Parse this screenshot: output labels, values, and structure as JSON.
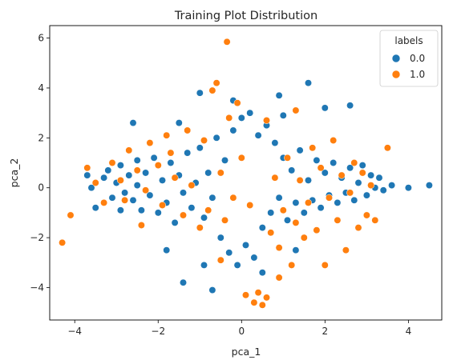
{
  "chart_data": {
    "type": "scatter",
    "title": "Training Plot Distribution",
    "xlabel": "pca_1",
    "ylabel": "pca_2",
    "xlim": [
      -4.6,
      4.8
    ],
    "ylim": [
      -5.3,
      6.5
    ],
    "x_ticks": [
      -4,
      -2,
      0,
      2,
      4
    ],
    "y_ticks": [
      -4,
      -2,
      0,
      2,
      4,
      6
    ],
    "x_tick_labels": [
      "−4",
      "−2",
      "0",
      "2",
      "4"
    ],
    "y_tick_labels": [
      "−4",
      "−2",
      "0",
      "2",
      "4",
      "6"
    ],
    "grid": false,
    "legend": {
      "title": "labels",
      "placement": "top-right",
      "entries": [
        {
          "label": "0.0",
          "color": "#1f77b4"
        },
        {
          "label": "1.0",
          "color": "#ff7f0e"
        }
      ]
    },
    "series": [
      {
        "name": "0.0",
        "color": "#1f77b4",
        "points": [
          [
            -3.7,
            0.5
          ],
          [
            -3.6,
            0.0
          ],
          [
            -3.5,
            -0.8
          ],
          [
            -3.3,
            0.4
          ],
          [
            -3.2,
            0.7
          ],
          [
            -3.1,
            -0.4
          ],
          [
            -3.0,
            0.2
          ],
          [
            -2.9,
            -0.9
          ],
          [
            -2.9,
            0.9
          ],
          [
            -2.8,
            -0.2
          ],
          [
            -2.7,
            0.5
          ],
          [
            -2.6,
            -0.5
          ],
          [
            -2.5,
            1.1
          ],
          [
            -2.5,
            0.1
          ],
          [
            -2.4,
            -0.9
          ],
          [
            -2.3,
            0.6
          ],
          [
            -2.2,
            -0.3
          ],
          [
            -2.1,
            1.2
          ],
          [
            -2.0,
            -1.0
          ],
          [
            -1.9,
            0.3
          ],
          [
            -1.8,
            -0.6
          ],
          [
            -1.7,
            1.0
          ],
          [
            -1.6,
            -1.4
          ],
          [
            -1.5,
            0.5
          ],
          [
            -1.4,
            -0.2
          ],
          [
            -1.3,
            1.4
          ],
          [
            -1.2,
            -0.8
          ],
          [
            -1.1,
            0.2
          ],
          [
            -1.0,
            1.6
          ],
          [
            -0.9,
            -1.2
          ],
          [
            -0.8,
            0.6
          ],
          [
            -0.7,
            -0.4
          ],
          [
            -0.6,
            2.0
          ],
          [
            -0.5,
            -2.0
          ],
          [
            -0.4,
            1.1
          ],
          [
            -0.3,
            -2.6
          ],
          [
            -0.2,
            2.3
          ],
          [
            -0.1,
            -3.1
          ],
          [
            0.0,
            2.8
          ],
          [
            0.1,
            -2.3
          ],
          [
            0.2,
            3.0
          ],
          [
            0.3,
            -2.8
          ],
          [
            0.4,
            2.1
          ],
          [
            0.5,
            -1.6
          ],
          [
            0.6,
            2.5
          ],
          [
            0.7,
            -1.0
          ],
          [
            0.8,
            1.8
          ],
          [
            0.9,
            -0.4
          ],
          [
            1.0,
            1.2
          ],
          [
            1.1,
            -1.3
          ],
          [
            1.2,
            0.7
          ],
          [
            1.3,
            -0.6
          ],
          [
            1.4,
            1.5
          ],
          [
            1.5,
            -1.0
          ],
          [
            1.6,
            0.3
          ],
          [
            1.7,
            -0.5
          ],
          [
            1.8,
            1.1
          ],
          [
            1.9,
            -0.8
          ],
          [
            2.0,
            0.6
          ],
          [
            2.1,
            -0.3
          ],
          [
            2.2,
            1.0
          ],
          [
            2.3,
            -0.6
          ],
          [
            2.4,
            0.4
          ],
          [
            2.5,
            -0.2
          ],
          [
            2.6,
            0.8
          ],
          [
            2.7,
            -0.5
          ],
          [
            2.8,
            0.2
          ],
          [
            2.9,
            0.9
          ],
          [
            3.0,
            -0.3
          ],
          [
            3.1,
            0.5
          ],
          [
            3.2,
            0.0
          ],
          [
            3.3,
            0.4
          ],
          [
            3.4,
            -0.1
          ],
          [
            3.6,
            0.1
          ],
          [
            4.0,
            0.0
          ],
          [
            4.5,
            0.1
          ],
          [
            1.6,
            4.2
          ],
          [
            -1.4,
            -3.8
          ],
          [
            -1.0,
            3.8
          ],
          [
            0.9,
            3.7
          ],
          [
            -0.7,
            -4.1
          ],
          [
            2.0,
            3.2
          ],
          [
            -1.5,
            2.6
          ],
          [
            1.3,
            -2.5
          ],
          [
            -2.6,
            2.6
          ],
          [
            -0.2,
            3.5
          ],
          [
            0.5,
            -3.4
          ],
          [
            2.6,
            3.3
          ],
          [
            -1.8,
            -2.5
          ],
          [
            1.0,
            2.9
          ],
          [
            -0.9,
            -3.1
          ]
        ]
      },
      {
        "name": "1.0",
        "color": "#ff7f0e",
        "points": [
          [
            -4.3,
            -2.2
          ],
          [
            -4.1,
            -1.1
          ],
          [
            -3.7,
            0.8
          ],
          [
            -3.5,
            0.2
          ],
          [
            -3.3,
            -0.6
          ],
          [
            -3.1,
            1.0
          ],
          [
            -2.9,
            0.3
          ],
          [
            -2.8,
            -0.5
          ],
          [
            -2.7,
            1.5
          ],
          [
            -2.5,
            0.7
          ],
          [
            -2.3,
            -0.1
          ],
          [
            -2.2,
            1.8
          ],
          [
            -2.0,
            0.9
          ],
          [
            -1.9,
            -0.7
          ],
          [
            -1.7,
            1.4
          ],
          [
            -1.6,
            0.4
          ],
          [
            -1.4,
            -1.1
          ],
          [
            -1.3,
            2.3
          ],
          [
            -1.2,
            0.1
          ],
          [
            -1.0,
            -1.6
          ],
          [
            -0.9,
            1.9
          ],
          [
            -0.8,
            -0.9
          ],
          [
            -0.7,
            3.9
          ],
          [
            -0.6,
            4.2
          ],
          [
            -0.5,
            0.6
          ],
          [
            -0.4,
            -1.3
          ],
          [
            -0.3,
            2.8
          ],
          [
            -0.35,
            5.85
          ],
          [
            -0.2,
            -0.4
          ],
          [
            -0.1,
            3.4
          ],
          [
            0.0,
            1.2
          ],
          [
            0.1,
            -4.3
          ],
          [
            0.2,
            -0.7
          ],
          [
            0.3,
            -4.6
          ],
          [
            0.4,
            -4.2
          ],
          [
            0.5,
            -4.7
          ],
          [
            0.6,
            -4.4
          ],
          [
            0.7,
            -1.8
          ],
          [
            0.8,
            0.4
          ],
          [
            0.9,
            -2.4
          ],
          [
            1.0,
            -0.9
          ],
          [
            1.1,
            1.2
          ],
          [
            1.2,
            -3.1
          ],
          [
            1.3,
            -1.4
          ],
          [
            1.4,
            0.3
          ],
          [
            1.5,
            -2.0
          ],
          [
            1.6,
            -0.6
          ],
          [
            1.7,
            1.6
          ],
          [
            1.8,
            -1.7
          ],
          [
            1.9,
            0.8
          ],
          [
            2.0,
            -3.1
          ],
          [
            2.1,
            -0.4
          ],
          [
            2.2,
            1.9
          ],
          [
            2.3,
            -1.3
          ],
          [
            2.4,
            0.5
          ],
          [
            2.5,
            -2.5
          ],
          [
            2.6,
            -0.2
          ],
          [
            2.7,
            1.0
          ],
          [
            2.8,
            -1.6
          ],
          [
            2.9,
            0.6
          ],
          [
            3.0,
            -1.1
          ],
          [
            3.1,
            0.1
          ],
          [
            3.2,
            -1.3
          ],
          [
            3.5,
            1.6
          ],
          [
            -1.8,
            2.1
          ],
          [
            0.6,
            2.7
          ],
          [
            -0.5,
            -2.9
          ],
          [
            1.3,
            3.1
          ],
          [
            -2.4,
            -1.5
          ],
          [
            0.9,
            -3.6
          ]
        ]
      }
    ]
  }
}
